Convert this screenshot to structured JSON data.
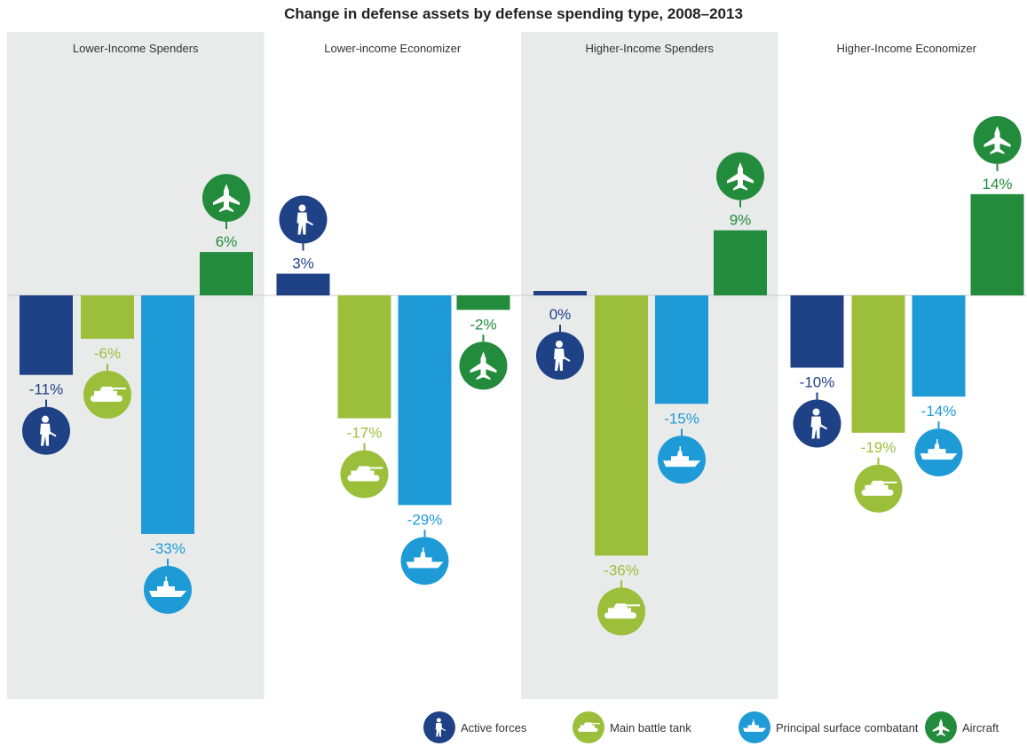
{
  "chart_data": {
    "type": "bar",
    "title": "Change in defense assets by defense spending type, 2008–2013",
    "unit": "%",
    "ylim": [
      -40,
      20
    ],
    "grid": false,
    "legend_position": "bottom-right",
    "groups": [
      {
        "name": "Lower-Income Spenders",
        "shaded": true,
        "values": [
          -11,
          -6,
          -33,
          6
        ]
      },
      {
        "name": "Lower-income Economizer",
        "shaded": false,
        "values": [
          3,
          -17,
          -29,
          -2
        ]
      },
      {
        "name": "Higher-Income Spenders",
        "shaded": true,
        "values": [
          0,
          -36,
          -15,
          9
        ]
      },
      {
        "name": "Higher-Income Economizer",
        "shaded": false,
        "values": [
          -10,
          -19,
          -14,
          14
        ]
      }
    ],
    "series": [
      {
        "name": "Active forces",
        "color": "#1f4185",
        "icon": "soldier-icon"
      },
      {
        "name": "Main battle tank",
        "color": "#9bbf3b",
        "icon": "tank-icon"
      },
      {
        "name": "Principal surface combatant",
        "color": "#1e9bd7",
        "icon": "ship-icon"
      },
      {
        "name": "Aircraft",
        "color": "#228b3c",
        "icon": "aircraft-icon"
      }
    ],
    "data_labels": [
      [
        "-11%",
        "-6%",
        "-33%",
        "6%"
      ],
      [
        "3%",
        "-17%",
        "-29%",
        "-2%"
      ],
      [
        "0%",
        "-36%",
        "-15%",
        "9%"
      ],
      [
        "-10%",
        "-19%",
        "-14%",
        "14%"
      ]
    ]
  },
  "colors": {
    "panel_shade": "#e9ebeb",
    "axis": "#cccccc"
  }
}
